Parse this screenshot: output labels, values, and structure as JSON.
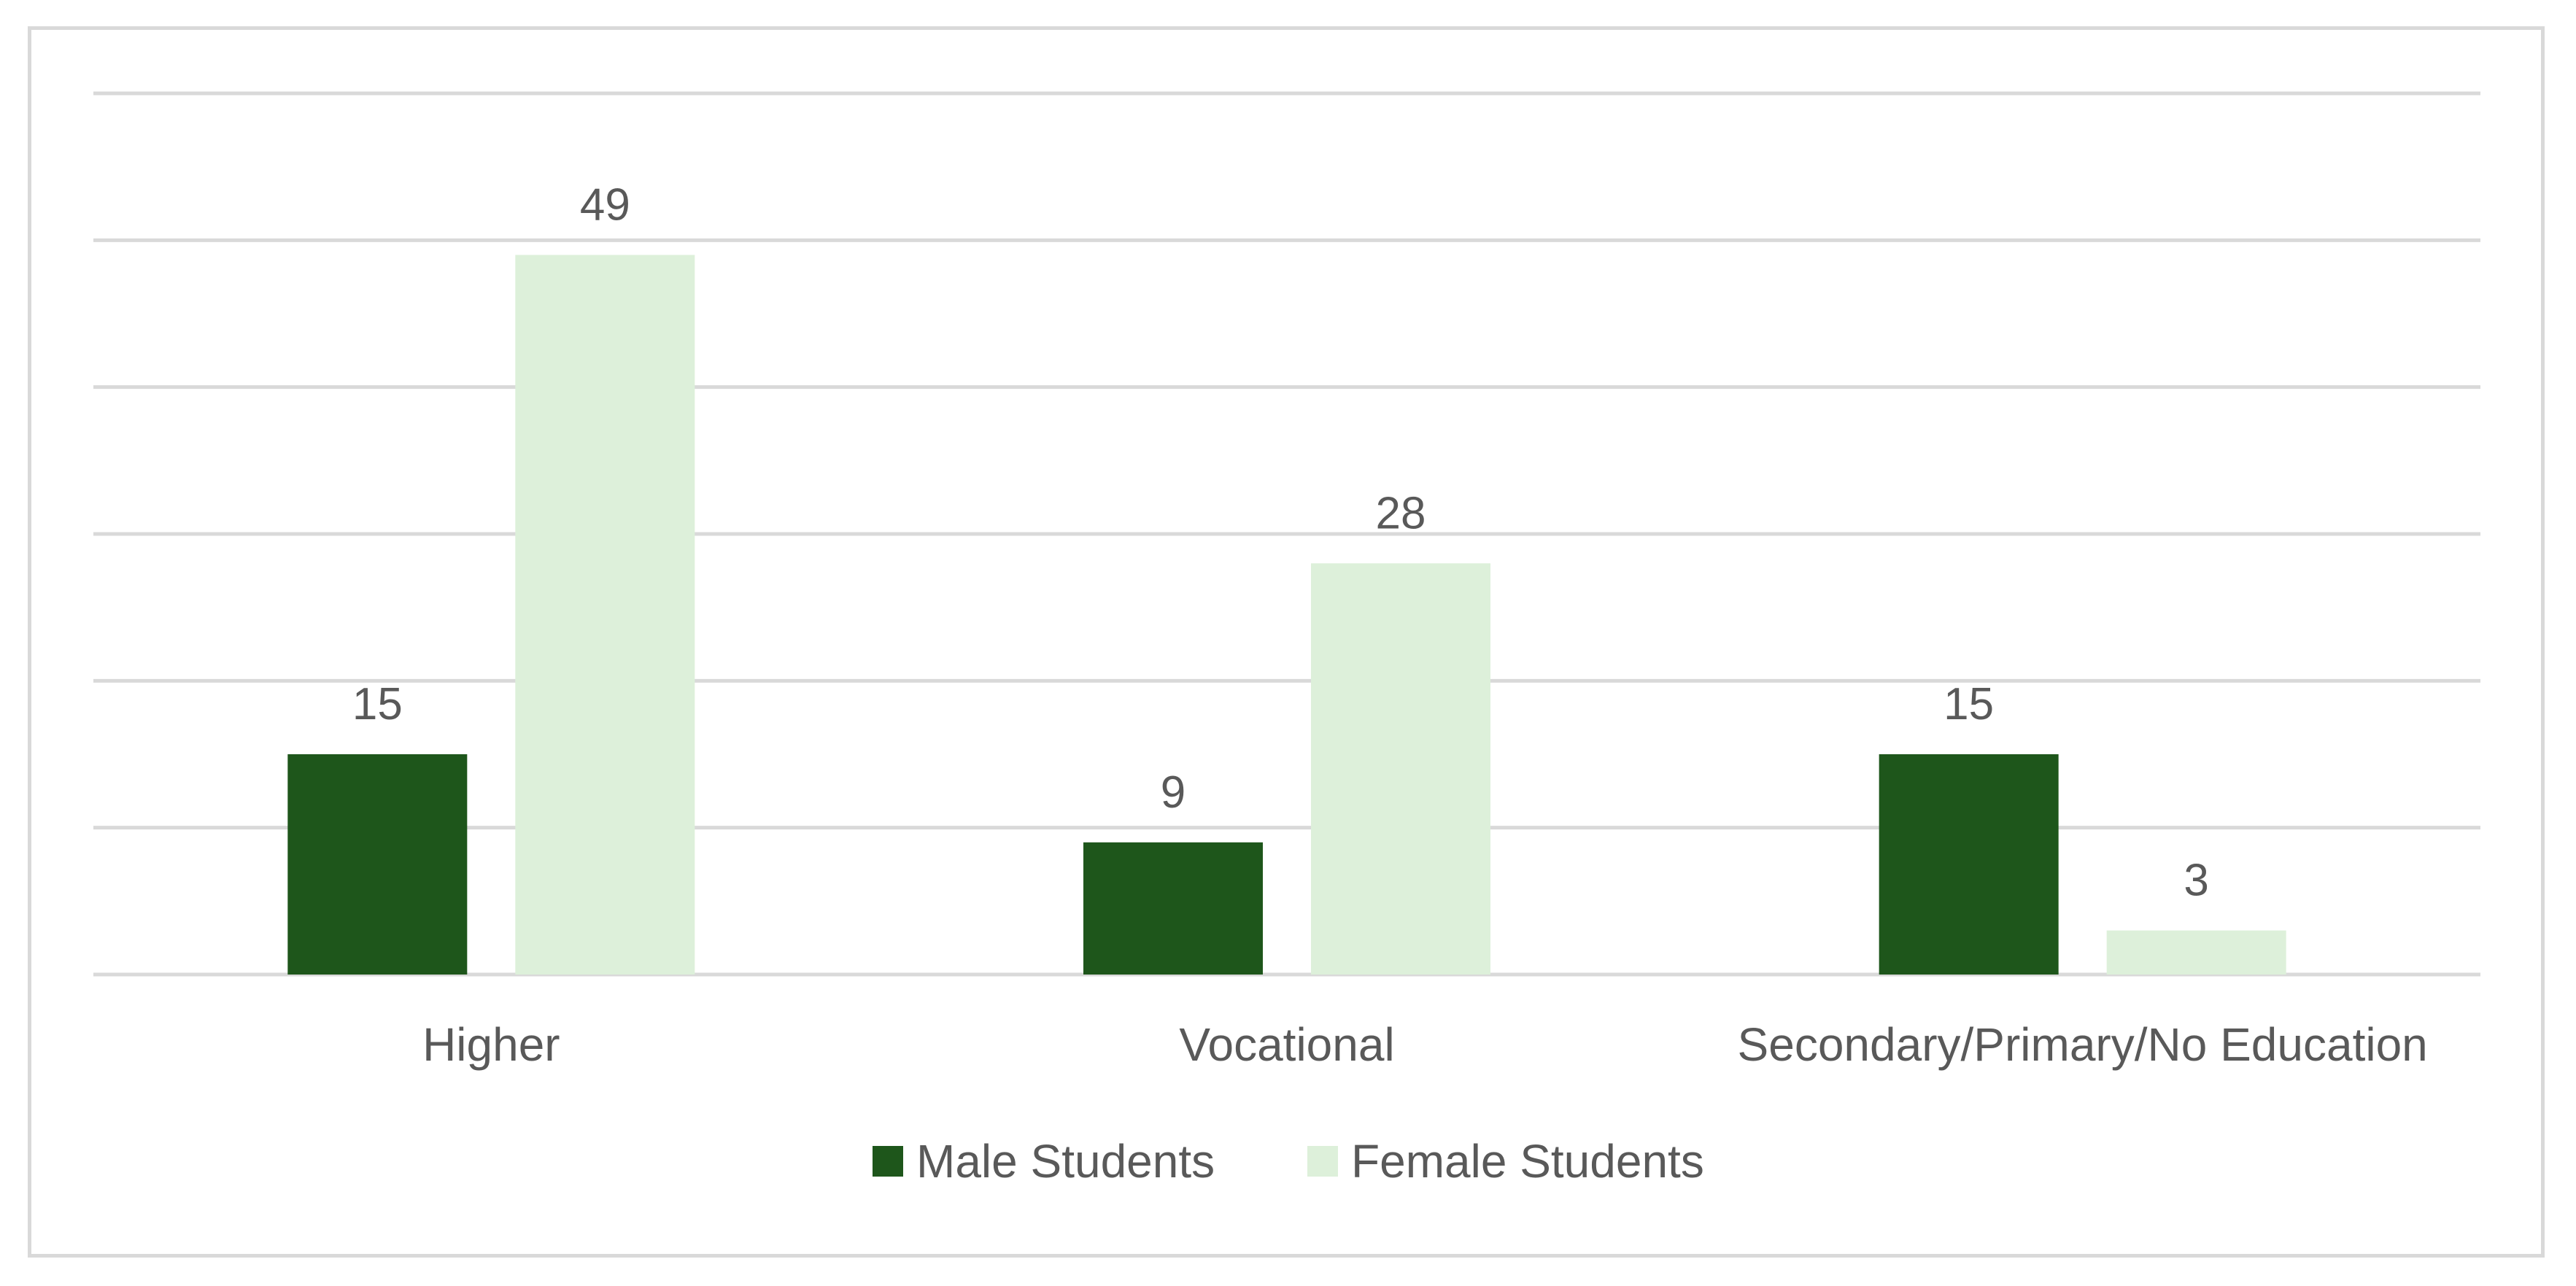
{
  "chart_data": {
    "type": "bar",
    "categories": [
      "Higher",
      "Vocational",
      "Secondary/Primary/No Education"
    ],
    "series": [
      {
        "name": "Male Students",
        "values": [
          15,
          9,
          15
        ],
        "color": "#1e561b"
      },
      {
        "name": "Female Students",
        "values": [
          49,
          28,
          3
        ],
        "color": "#ddf0da"
      }
    ],
    "title": "",
    "xlabel": "",
    "ylabel": "",
    "ylim": [
      0,
      60
    ],
    "ytick_step": 10,
    "show_y_tick_labels": false,
    "grid": true,
    "gridline_color": "#d9d9d9",
    "data_labels": true,
    "legend": "bottom-center"
  }
}
